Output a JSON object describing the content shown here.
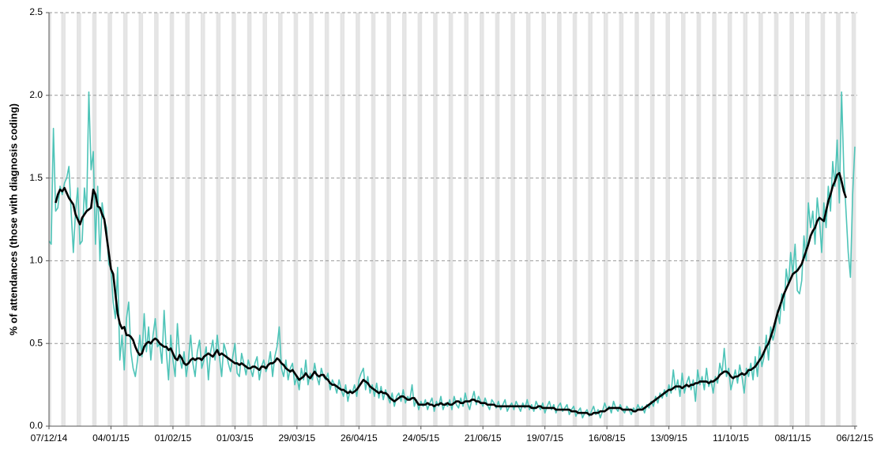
{
  "chart_data": {
    "type": "line",
    "y_label": "% of attendances (those with diagnosis coding)",
    "x": [
      "07/12/14",
      "08/12/14",
      "09/12/14",
      "10/12/14",
      "11/12/14",
      "12/12/14",
      "13/12/14",
      "14/12/14",
      "15/12/14",
      "16/12/14",
      "17/12/14",
      "18/12/14",
      "19/12/14",
      "20/12/14",
      "21/12/14",
      "22/12/14",
      "23/12/14",
      "24/12/14",
      "25/12/14",
      "26/12/14",
      "27/12/14",
      "28/12/14",
      "29/12/14",
      "30/12/14",
      "31/12/14",
      "01/01/15",
      "02/01/15",
      "03/01/15",
      "04/01/15",
      "05/01/15",
      "06/01/15",
      "07/01/15",
      "08/01/15",
      "09/01/15",
      "10/01/15",
      "11/01/15",
      "12/01/15",
      "13/01/15",
      "14/01/15",
      "15/01/15",
      "16/01/15",
      "17/01/15",
      "18/01/15",
      "19/01/15",
      "20/01/15",
      "21/01/15",
      "22/01/15",
      "23/01/15",
      "24/01/15",
      "25/01/15",
      "26/01/15",
      "27/01/15",
      "28/01/15",
      "29/01/15",
      "30/01/15",
      "31/01/15",
      "01/02/15",
      "02/02/15",
      "03/02/15",
      "04/02/15",
      "05/02/15",
      "06/02/15",
      "07/02/15",
      "08/02/15",
      "09/02/15",
      "10/02/15",
      "11/02/15",
      "12/02/15",
      "13/02/15",
      "14/02/15",
      "15/02/15",
      "16/02/15",
      "17/02/15",
      "18/02/15",
      "19/02/15",
      "20/02/15",
      "21/02/15",
      "22/02/15",
      "23/02/15",
      "24/02/15",
      "25/02/15",
      "26/02/15",
      "27/02/15",
      "28/02/15",
      "01/03/15",
      "02/03/15",
      "03/03/15",
      "04/03/15",
      "05/03/15",
      "06/03/15",
      "07/03/15",
      "08/03/15",
      "09/03/15",
      "10/03/15",
      "11/03/15",
      "12/03/15",
      "13/03/15",
      "14/03/15",
      "15/03/15",
      "16/03/15",
      "17/03/15",
      "18/03/15",
      "19/03/15",
      "20/03/15",
      "21/03/15",
      "22/03/15",
      "23/03/15",
      "24/03/15",
      "25/03/15",
      "26/03/15",
      "27/03/15",
      "28/03/15",
      "29/03/15",
      "30/03/15",
      "31/03/15",
      "01/04/15",
      "02/04/15",
      "03/04/15",
      "04/04/15",
      "05/04/15",
      "06/04/15",
      "07/04/15",
      "08/04/15",
      "09/04/15",
      "10/04/15",
      "11/04/15",
      "12/04/15",
      "13/04/15",
      "14/04/15",
      "15/04/15",
      "16/04/15",
      "17/04/15",
      "18/04/15",
      "19/04/15",
      "20/04/15",
      "21/04/15",
      "22/04/15",
      "23/04/15",
      "24/04/15",
      "25/04/15",
      "26/04/15",
      "27/04/15",
      "28/04/15",
      "29/04/15",
      "30/04/15",
      "01/05/15",
      "02/05/15",
      "03/05/15",
      "04/05/15",
      "05/05/15",
      "06/05/15",
      "07/05/15",
      "08/05/15",
      "09/05/15",
      "10/05/15",
      "11/05/15",
      "12/05/15",
      "13/05/15",
      "14/05/15",
      "15/05/15",
      "16/05/15",
      "17/05/15",
      "18/05/15",
      "19/05/15",
      "20/05/15",
      "21/05/15",
      "22/05/15",
      "23/05/15",
      "24/05/15",
      "25/05/15",
      "26/05/15",
      "27/05/15",
      "28/05/15",
      "29/05/15",
      "30/05/15",
      "31/05/15",
      "01/06/15",
      "02/06/15",
      "03/06/15",
      "04/06/15",
      "05/06/15",
      "06/06/15",
      "07/06/15",
      "08/06/15",
      "09/06/15",
      "10/06/15",
      "11/06/15",
      "12/06/15",
      "13/06/15",
      "14/06/15",
      "15/06/15",
      "16/06/15",
      "17/06/15",
      "18/06/15",
      "19/06/15",
      "20/06/15",
      "21/06/15",
      "22/06/15",
      "23/06/15",
      "24/06/15",
      "25/06/15",
      "26/06/15",
      "27/06/15",
      "28/06/15",
      "29/06/15",
      "30/06/15",
      "01/07/15",
      "02/07/15",
      "03/07/15",
      "04/07/15",
      "05/07/15",
      "06/07/15",
      "07/07/15",
      "08/07/15",
      "09/07/15",
      "10/07/15",
      "11/07/15",
      "12/07/15",
      "13/07/15",
      "14/07/15",
      "15/07/15",
      "16/07/15",
      "17/07/15",
      "18/07/15",
      "19/07/15",
      "20/07/15",
      "21/07/15",
      "22/07/15",
      "23/07/15",
      "24/07/15",
      "25/07/15",
      "26/07/15",
      "27/07/15",
      "28/07/15",
      "29/07/15",
      "30/07/15",
      "31/07/15",
      "01/08/15",
      "02/08/15",
      "03/08/15",
      "04/08/15",
      "05/08/15",
      "06/08/15",
      "07/08/15",
      "08/08/15",
      "09/08/15",
      "10/08/15",
      "11/08/15",
      "12/08/15",
      "13/08/15",
      "14/08/15",
      "15/08/15",
      "16/08/15",
      "17/08/15",
      "18/08/15",
      "19/08/15",
      "20/08/15",
      "21/08/15",
      "22/08/15",
      "23/08/15",
      "24/08/15",
      "25/08/15",
      "26/08/15",
      "27/08/15",
      "28/08/15",
      "29/08/15",
      "30/08/15",
      "31/08/15",
      "01/09/15",
      "02/09/15",
      "03/09/15",
      "04/09/15",
      "05/09/15",
      "06/09/15",
      "07/09/15",
      "08/09/15",
      "09/09/15",
      "10/09/15",
      "11/09/15",
      "12/09/15",
      "13/09/15",
      "14/09/15",
      "15/09/15",
      "16/09/15",
      "17/09/15",
      "18/09/15",
      "19/09/15",
      "20/09/15",
      "21/09/15",
      "22/09/15",
      "23/09/15",
      "24/09/15",
      "25/09/15",
      "26/09/15",
      "27/09/15",
      "28/09/15",
      "29/09/15",
      "30/09/15",
      "01/10/15",
      "02/10/15",
      "03/10/15",
      "04/10/15",
      "05/10/15",
      "06/10/15",
      "07/10/15",
      "08/10/15",
      "09/10/15",
      "10/10/15",
      "11/10/15",
      "12/10/15",
      "13/10/15",
      "14/10/15",
      "15/10/15",
      "16/10/15",
      "17/10/15",
      "18/10/15",
      "19/10/15",
      "20/10/15",
      "21/10/15",
      "22/10/15",
      "23/10/15",
      "24/10/15",
      "25/10/15",
      "26/10/15",
      "27/10/15",
      "28/10/15",
      "29/10/15",
      "30/10/15",
      "31/10/15",
      "01/11/15",
      "02/11/15",
      "03/11/15",
      "04/11/15",
      "05/11/15",
      "06/11/15",
      "07/11/15",
      "08/11/15",
      "09/11/15",
      "10/11/15",
      "11/11/15",
      "12/11/15",
      "13/11/15",
      "14/11/15",
      "15/11/15",
      "16/11/15",
      "17/11/15",
      "18/11/15",
      "19/11/15",
      "20/11/15",
      "21/11/15",
      "22/11/15",
      "23/11/15",
      "24/11/15",
      "25/11/15",
      "26/11/15",
      "27/11/15",
      "28/11/15",
      "29/11/15",
      "30/11/15",
      "01/12/15",
      "02/12/15",
      "03/12/15",
      "04/12/15",
      "05/12/15",
      "06/12/15"
    ],
    "series": [
      {
        "color": "#4fc4b8",
        "width": 1.6,
        "values": [
          1.12,
          1.1,
          1.8,
          1.3,
          1.32,
          1.45,
          1.4,
          1.47,
          1.5,
          1.57,
          1.3,
          1.05,
          1.3,
          1.44,
          1.1,
          1.12,
          1.44,
          1.3,
          2.02,
          1.55,
          1.66,
          1.1,
          1.45,
          1.0,
          1.35,
          1.25,
          1.2,
          0.98,
          0.95,
          0.75,
          0.65,
          0.96,
          0.4,
          0.55,
          0.34,
          0.65,
          0.75,
          0.45,
          0.35,
          0.3,
          0.4,
          0.55,
          0.42,
          0.68,
          0.45,
          0.6,
          0.4,
          0.55,
          0.65,
          0.48,
          0.5,
          0.38,
          0.7,
          0.45,
          0.28,
          0.55,
          0.4,
          0.3,
          0.62,
          0.42,
          0.35,
          0.45,
          0.3,
          0.4,
          0.55,
          0.38,
          0.3,
          0.45,
          0.52,
          0.35,
          0.4,
          0.48,
          0.28,
          0.45,
          0.52,
          0.4,
          0.55,
          0.42,
          0.3,
          0.5,
          0.45,
          0.38,
          0.33,
          0.42,
          0.5,
          0.32,
          0.3,
          0.44,
          0.38,
          0.31,
          0.4,
          0.35,
          0.3,
          0.38,
          0.42,
          0.28,
          0.36,
          0.4,
          0.33,
          0.37,
          0.45,
          0.3,
          0.42,
          0.48,
          0.6,
          0.35,
          0.3,
          0.4,
          0.28,
          0.35,
          0.38,
          0.25,
          0.3,
          0.22,
          0.35,
          0.28,
          0.4,
          0.25,
          0.32,
          0.28,
          0.38,
          0.3,
          0.25,
          0.35,
          0.3,
          0.28,
          0.32,
          0.22,
          0.28,
          0.25,
          0.2,
          0.28,
          0.22,
          0.18,
          0.25,
          0.15,
          0.22,
          0.2,
          0.25,
          0.18,
          0.28,
          0.32,
          0.35,
          0.22,
          0.3,
          0.2,
          0.25,
          0.18,
          0.26,
          0.17,
          0.24,
          0.16,
          0.22,
          0.18,
          0.14,
          0.2,
          0.12,
          0.18,
          0.2,
          0.15,
          0.22,
          0.14,
          0.18,
          0.16,
          0.25,
          0.12,
          0.16,
          0.1,
          0.15,
          0.12,
          0.16,
          0.1,
          0.14,
          0.17,
          0.09,
          0.15,
          0.12,
          0.18,
          0.1,
          0.14,
          0.12,
          0.16,
          0.1,
          0.18,
          0.13,
          0.11,
          0.17,
          0.12,
          0.2,
          0.14,
          0.1,
          0.16,
          0.21,
          0.13,
          0.18,
          0.15,
          0.12,
          0.17,
          0.13,
          0.1,
          0.16,
          0.14,
          0.11,
          0.15,
          0.1,
          0.13,
          0.16,
          0.09,
          0.12,
          0.14,
          0.1,
          0.15,
          0.12,
          0.09,
          0.14,
          0.11,
          0.16,
          0.1,
          0.13,
          0.09,
          0.15,
          0.12,
          0.1,
          0.14,
          0.08,
          0.12,
          0.15,
          0.1,
          0.13,
          0.08,
          0.12,
          0.14,
          0.09,
          0.11,
          0.13,
          0.07,
          0.1,
          0.12,
          0.06,
          0.09,
          0.11,
          0.05,
          0.08,
          0.1,
          0.06,
          0.09,
          0.12,
          0.07,
          0.1,
          0.05,
          0.09,
          0.14,
          0.1,
          0.12,
          0.08,
          0.15,
          0.11,
          0.09,
          0.13,
          0.1,
          0.08,
          0.12,
          0.1,
          0.07,
          0.11,
          0.09,
          0.13,
          0.1,
          0.12,
          0.08,
          0.13,
          0.11,
          0.15,
          0.12,
          0.18,
          0.14,
          0.2,
          0.17,
          0.22,
          0.18,
          0.25,
          0.2,
          0.34,
          0.22,
          0.28,
          0.18,
          0.32,
          0.2,
          0.26,
          0.3,
          0.22,
          0.28,
          0.15,
          0.34,
          0.25,
          0.3,
          0.22,
          0.35,
          0.24,
          0.28,
          0.2,
          0.3,
          0.26,
          0.38,
          0.32,
          0.47,
          0.3,
          0.35,
          0.22,
          0.28,
          0.34,
          0.26,
          0.37,
          0.3,
          0.2,
          0.35,
          0.3,
          0.38,
          0.28,
          0.42,
          0.3,
          0.48,
          0.36,
          0.42,
          0.55,
          0.4,
          0.6,
          0.52,
          0.58,
          0.7,
          0.62,
          0.8,
          0.7,
          0.95,
          0.85,
          1.05,
          0.92,
          1.1,
          0.82,
          0.8,
          0.88,
          1.15,
          1.0,
          1.35,
          1.2,
          1.3,
          1.1,
          1.38,
          1.25,
          1.05,
          1.35,
          1.2,
          1.45,
          1.3,
          1.6,
          1.45,
          1.73,
          1.35,
          2.02,
          1.55,
          1.3,
          1.05,
          0.9,
          1.4,
          1.69
        ]
      },
      {
        "color": "#000000",
        "width": 2.6,
        "values": [
          null,
          null,
          null,
          1.35,
          1.4,
          1.43,
          1.42,
          1.44,
          1.41,
          1.38,
          1.36,
          1.34,
          1.28,
          1.25,
          1.22,
          1.26,
          1.28,
          1.3,
          1.31,
          1.32,
          1.43,
          1.4,
          1.33,
          1.32,
          1.28,
          1.25,
          1.15,
          1.05,
          0.95,
          0.92,
          0.8,
          0.68,
          0.62,
          0.59,
          0.6,
          0.55,
          0.55,
          0.54,
          0.52,
          0.48,
          0.45,
          0.43,
          0.44,
          0.48,
          0.5,
          0.51,
          0.5,
          0.52,
          0.53,
          0.52,
          0.5,
          0.49,
          0.48,
          0.48,
          0.46,
          0.47,
          0.44,
          0.41,
          0.4,
          0.43,
          0.41,
          0.38,
          0.37,
          0.38,
          0.4,
          0.41,
          0.4,
          0.41,
          0.41,
          0.4,
          0.42,
          0.43,
          0.44,
          0.43,
          0.42,
          0.44,
          0.46,
          0.43,
          0.44,
          0.43,
          0.42,
          0.41,
          0.4,
          0.39,
          0.38,
          0.38,
          0.37,
          0.38,
          0.37,
          0.36,
          0.35,
          0.35,
          0.36,
          0.36,
          0.35,
          0.34,
          0.36,
          0.36,
          0.35,
          0.37,
          0.38,
          0.38,
          0.39,
          0.41,
          0.4,
          0.38,
          0.37,
          0.35,
          0.34,
          0.33,
          0.34,
          0.32,
          0.3,
          0.28,
          0.29,
          0.3,
          0.32,
          0.3,
          0.29,
          0.31,
          0.33,
          0.31,
          0.3,
          0.31,
          0.31,
          0.29,
          0.28,
          0.26,
          0.25,
          0.25,
          0.24,
          0.23,
          0.22,
          0.22,
          0.21,
          0.2,
          0.21,
          0.2,
          0.21,
          0.22,
          0.24,
          0.26,
          0.28,
          0.27,
          0.26,
          0.24,
          0.23,
          0.22,
          0.21,
          0.2,
          0.21,
          0.2,
          0.2,
          0.19,
          0.17,
          0.16,
          0.15,
          0.16,
          0.17,
          0.18,
          0.18,
          0.17,
          0.16,
          0.16,
          0.17,
          0.17,
          0.15,
          0.13,
          0.13,
          0.13,
          0.13,
          0.14,
          0.13,
          0.13,
          0.12,
          0.13,
          0.13,
          0.14,
          0.13,
          0.13,
          0.14,
          0.13,
          0.13,
          0.14,
          0.15,
          0.15,
          0.14,
          0.14,
          0.15,
          0.15,
          0.15,
          0.16,
          0.16,
          0.15,
          0.15,
          0.14,
          0.14,
          0.14,
          0.13,
          0.13,
          0.13,
          0.13,
          0.12,
          0.12,
          0.12,
          0.12,
          0.12,
          0.12,
          0.12,
          0.12,
          0.12,
          0.12,
          0.12,
          0.12,
          0.12,
          0.12,
          0.12,
          0.12,
          0.11,
          0.11,
          0.11,
          0.12,
          0.12,
          0.11,
          0.11,
          0.11,
          0.11,
          0.11,
          0.11,
          0.1,
          0.1,
          0.1,
          0.1,
          0.1,
          0.1,
          0.1,
          0.09,
          0.09,
          0.09,
          0.08,
          0.08,
          0.08,
          0.08,
          0.08,
          0.07,
          0.07,
          0.08,
          0.08,
          0.08,
          0.09,
          0.09,
          0.09,
          0.1,
          0.11,
          0.11,
          0.11,
          0.11,
          0.11,
          0.11,
          0.1,
          0.1,
          0.1,
          0.1,
          0.1,
          0.09,
          0.09,
          0.1,
          0.1,
          0.1,
          0.11,
          0.12,
          0.13,
          0.14,
          0.15,
          0.16,
          0.17,
          0.18,
          0.19,
          0.2,
          0.21,
          0.22,
          0.22,
          0.23,
          0.24,
          0.24,
          0.24,
          0.23,
          0.24,
          0.25,
          0.24,
          0.25,
          0.25,
          0.26,
          0.26,
          0.27,
          0.27,
          0.27,
          0.27,
          0.26,
          0.27,
          0.27,
          0.28,
          0.29,
          0.31,
          0.32,
          0.33,
          0.33,
          0.32,
          0.3,
          0.29,
          0.3,
          0.3,
          0.31,
          0.32,
          0.31,
          0.32,
          0.34,
          0.34,
          0.35,
          0.36,
          0.38,
          0.4,
          0.42,
          0.45,
          0.48,
          0.5,
          0.54,
          0.58,
          0.63,
          0.68,
          0.72,
          0.76,
          0.8,
          0.83,
          0.86,
          0.89,
          0.92,
          0.93,
          0.94,
          0.96,
          0.98,
          1.02,
          1.06,
          1.1,
          1.15,
          1.18,
          1.2,
          1.24,
          1.26,
          1.25,
          1.24,
          1.3,
          1.36,
          1.4,
          1.45,
          1.48,
          1.52,
          1.53,
          1.48,
          1.42,
          1.38,
          null,
          null,
          null,
          null
        ]
      }
    ],
    "ylim": [
      0,
      2.5
    ],
    "yticks": [
      {
        "value": 0,
        "label": "0.0"
      },
      0.5,
      {
        "value": 1,
        "label": "1.0"
      },
      1.5,
      {
        "value": 2,
        "label": "2.0"
      },
      2.5
    ],
    "xticks": [
      "07/12/14",
      "04/01/15",
      "01/02/15",
      "01/03/15",
      "29/03/15",
      "26/04/15",
      "24/05/15",
      "21/06/15",
      "19/07/15",
      "16/08/15",
      "13/09/15",
      "11/10/15",
      "08/11/15",
      "06/12/15"
    ],
    "grid": true,
    "weekend_shading": true
  }
}
